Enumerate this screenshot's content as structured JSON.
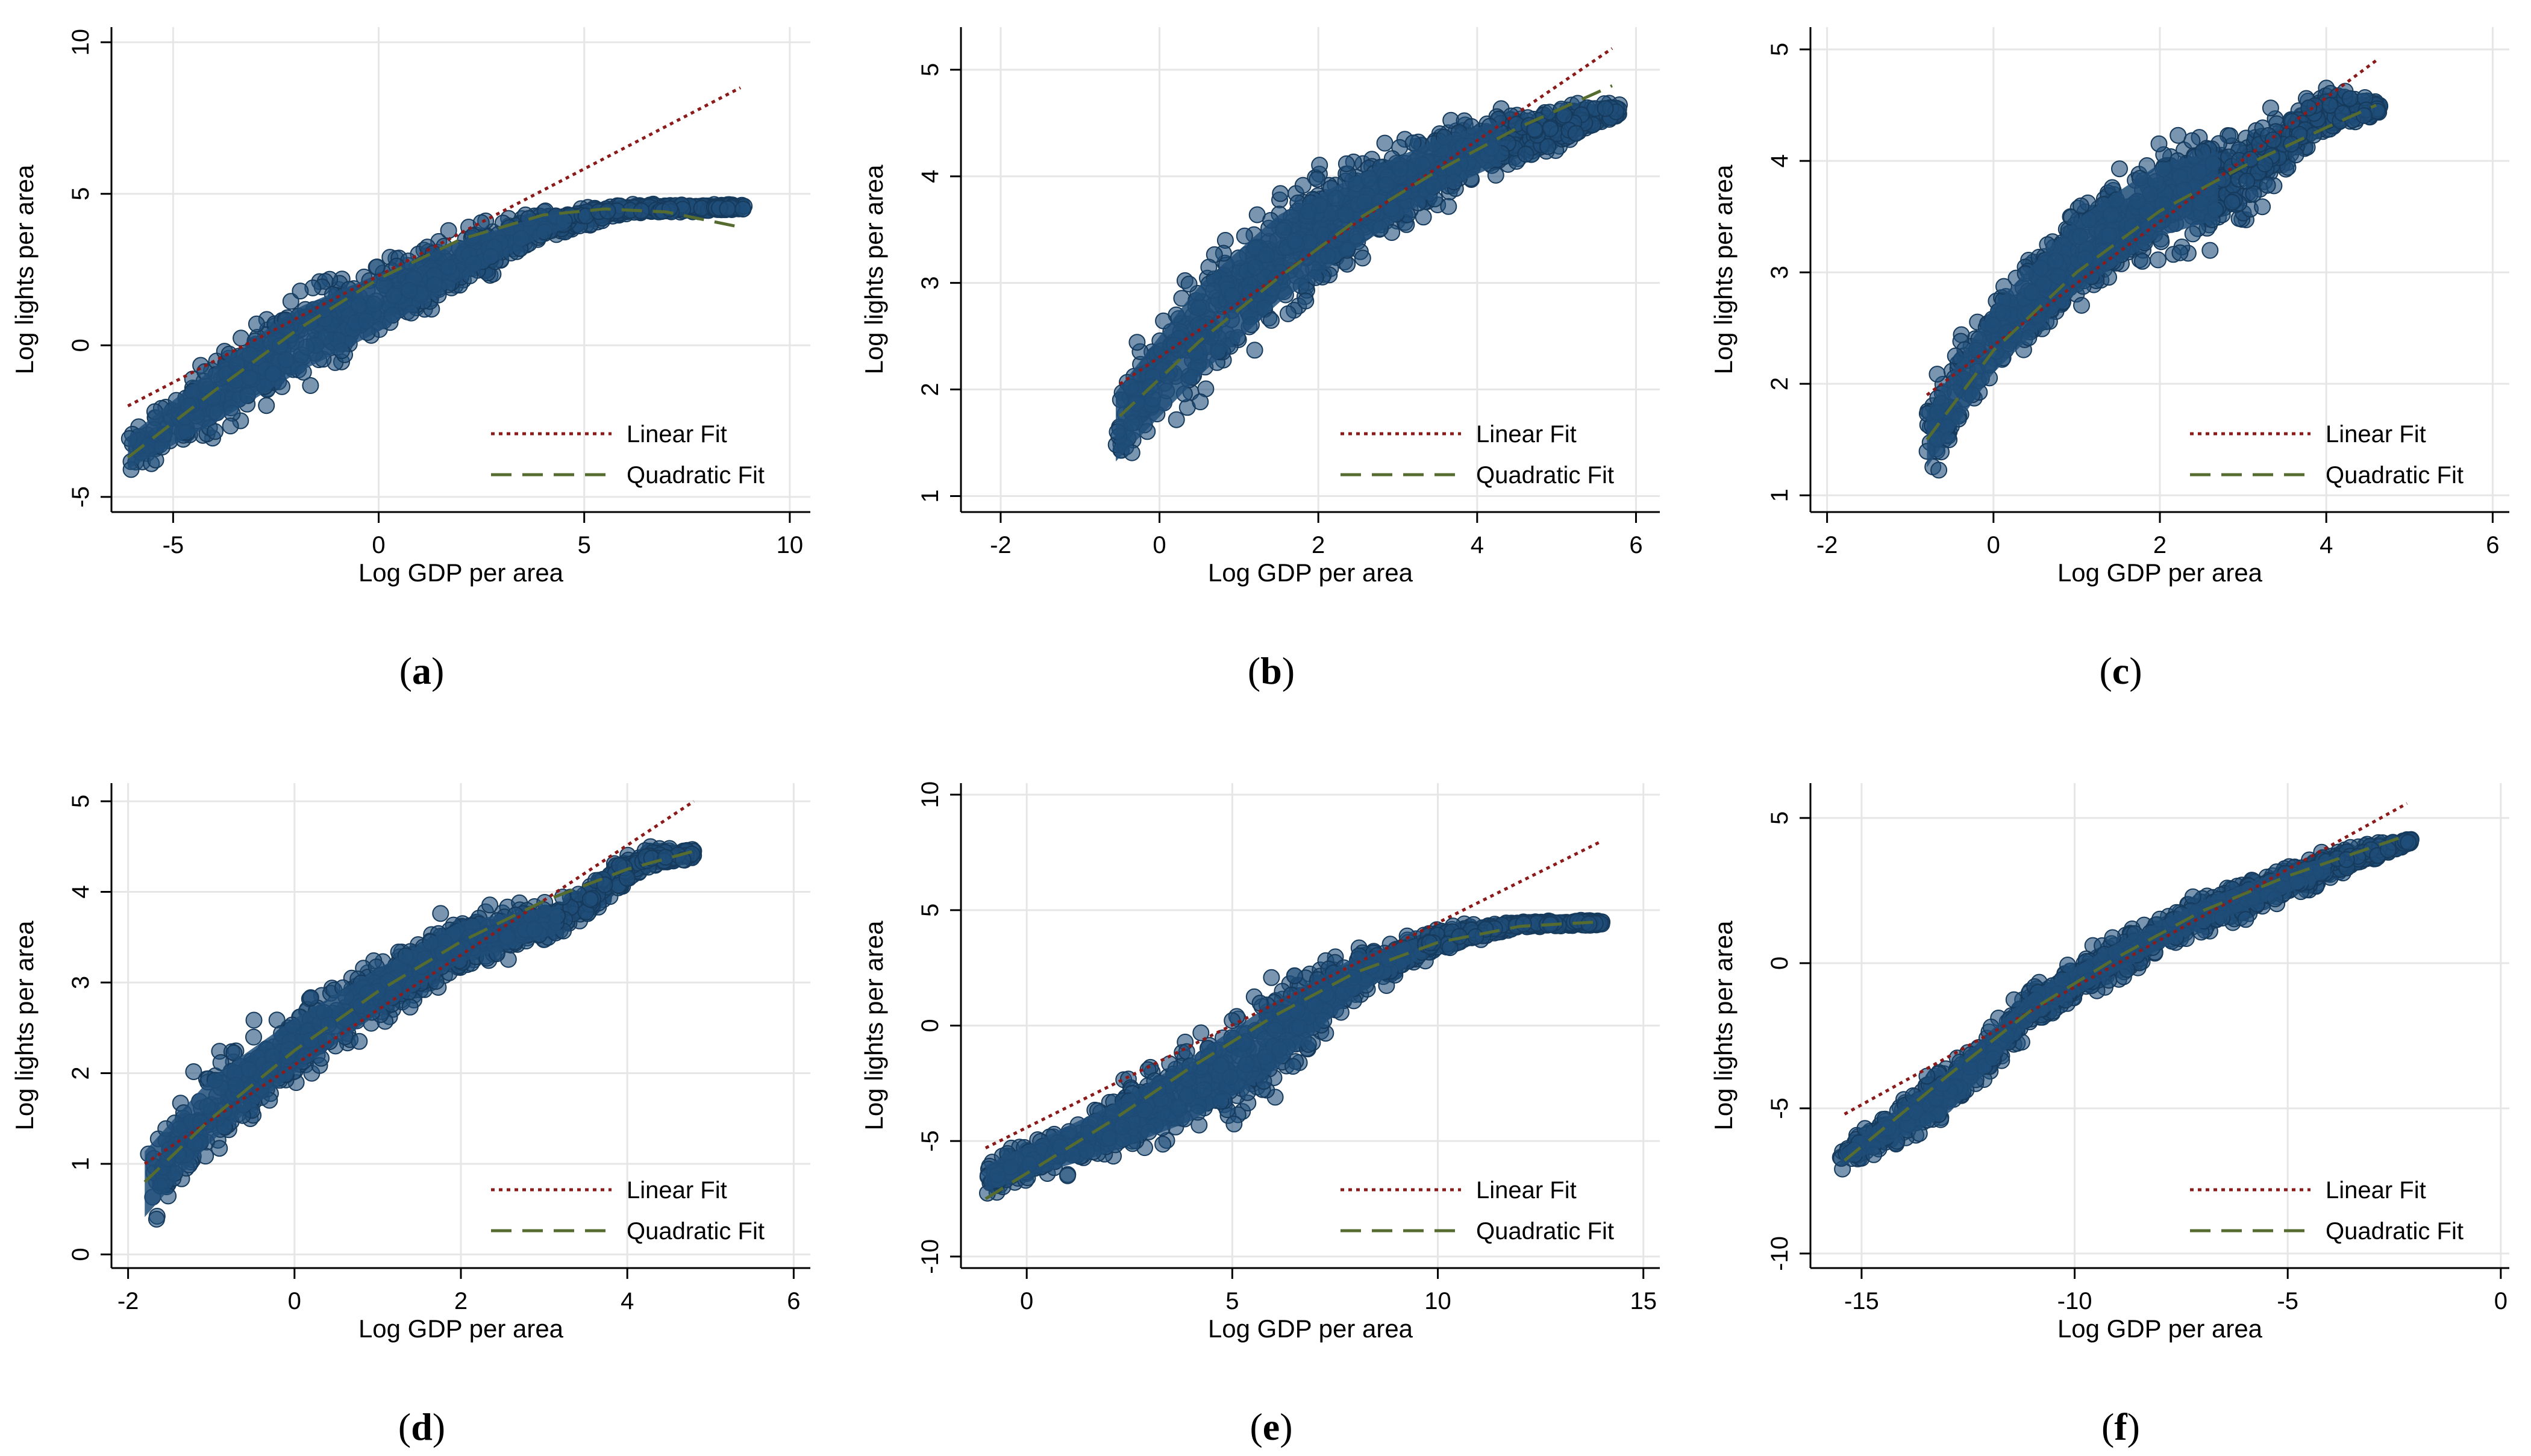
{
  "colors": {
    "scatter": "#1f4e79",
    "scatter_edge": "#163a5c",
    "linear_fit": "#8b1a1a",
    "quadratic_fit": "#556b2f",
    "grid": "#e6e6e6",
    "axis": "#000000"
  },
  "chart_data": [
    {
      "panel": "(a)",
      "panel_label_parts": [
        "(",
        "a",
        ")"
      ],
      "type": "scatter",
      "xlabel": "Log GDP per area",
      "ylabel": "Log lights per area",
      "xlim": [
        -6.5,
        10.5
      ],
      "ylim": [
        -5.5,
        10.5
      ],
      "xticks": [
        -5,
        0,
        5,
        10
      ],
      "yticks": [
        -5,
        0,
        5,
        10
      ],
      "xtick_labels": [
        "-5",
        "0",
        "5",
        "10"
      ],
      "ytick_labels": [
        "-5",
        "0",
        "5",
        "10"
      ],
      "grid": true,
      "legend_position": "bottom-right",
      "legend": [
        "Linear Fit",
        "Quadratic Fit"
      ],
      "scatter_x_range": [
        -6.1,
        8.9
      ],
      "scatter_max_x": 4.6,
      "linear_fit": {
        "x": [
          -6.1,
          8.8
        ],
        "y": [
          -2.0,
          8.5
        ]
      },
      "quadratic_fit": {
        "x": [
          -6.1,
          -4,
          -2,
          0,
          2,
          4,
          5.5,
          7,
          8.8
        ],
        "y": [
          -3.7,
          -1.5,
          0.5,
          2.2,
          3.5,
          4.3,
          4.5,
          4.4,
          3.9
        ]
      },
      "scatter_band": {
        "x": [
          -6.1,
          -4,
          -2,
          0,
          2,
          4,
          6,
          8.8
        ],
        "y_low": [
          -4.6,
          -3.5,
          -2.0,
          -0.5,
          1.5,
          3.3,
          4.3,
          4.4
        ],
        "y_high": [
          -2.5,
          0.2,
          2.3,
          3.3,
          4.1,
          4.6,
          4.7,
          4.7
        ]
      }
    },
    {
      "panel": "(b)",
      "panel_label_parts": [
        "(",
        "b",
        ")"
      ],
      "type": "scatter",
      "xlabel": "Log GDP per area",
      "ylabel": "Log lights per area",
      "xlim": [
        -2.5,
        6.3
      ],
      "ylim": [
        0.85,
        5.4
      ],
      "xticks": [
        -2,
        0,
        2,
        4,
        6
      ],
      "yticks": [
        1,
        2,
        3,
        4,
        5
      ],
      "xtick_labels": [
        "-2",
        "0",
        "2",
        "4",
        "6"
      ],
      "ytick_labels": [
        "1",
        "2",
        "3",
        "4",
        "5"
      ],
      "grid": true,
      "legend_position": "bottom-right",
      "legend": [
        "Linear Fit",
        "Quadratic Fit"
      ],
      "scatter_x_range": [
        -0.55,
        5.8
      ],
      "scatter_max_x": 4.3,
      "linear_fit": {
        "x": [
          -0.5,
          5.7
        ],
        "y": [
          2.05,
          5.2
        ]
      },
      "quadratic_fit": {
        "x": [
          -0.5,
          0.5,
          1.5,
          2.5,
          3.5,
          4.5,
          5.7
        ],
        "y": [
          1.75,
          2.45,
          3.05,
          3.6,
          4.05,
          4.45,
          4.85
        ]
      },
      "scatter_band": {
        "x": [
          -0.55,
          0.5,
          1.5,
          2.5,
          3.5,
          4.5,
          5.8
        ],
        "y_low": [
          1.0,
          1.7,
          2.4,
          3.0,
          3.6,
          4.0,
          4.55
        ],
        "y_high": [
          2.3,
          3.4,
          4.05,
          4.35,
          4.6,
          4.75,
          4.7
        ]
      }
    },
    {
      "panel": "(c)",
      "panel_label_parts": [
        "(",
        "c",
        ")"
      ],
      "type": "scatter",
      "xlabel": "Log GDP per area",
      "ylabel": "Log lights per area",
      "xlim": [
        -2.2,
        6.2
      ],
      "ylim": [
        0.85,
        5.2
      ],
      "xticks": [
        -2,
        0,
        2,
        4,
        6
      ],
      "yticks": [
        1,
        2,
        3,
        4,
        5
      ],
      "xtick_labels": [
        "-2",
        "0",
        "2",
        "4",
        "6"
      ],
      "ytick_labels": [
        "1",
        "2",
        "3",
        "4",
        "5"
      ],
      "grid": true,
      "legend_position": "bottom-right",
      "legend": [
        "Linear Fit",
        "Quadratic Fit"
      ],
      "scatter_x_range": [
        -0.8,
        4.65
      ],
      "scatter_max_x": 2.7,
      "linear_fit": {
        "x": [
          -0.8,
          4.6
        ],
        "y": [
          1.9,
          4.9
        ]
      },
      "quadratic_fit": {
        "x": [
          -0.8,
          0,
          1,
          2,
          3,
          4,
          4.6
        ],
        "y": [
          1.5,
          2.3,
          3.0,
          3.55,
          3.95,
          4.3,
          4.5
        ]
      },
      "scatter_band": {
        "x": [
          -0.8,
          0,
          1,
          2,
          2.8,
          4.0,
          4.65
        ],
        "y_low": [
          1.0,
          1.8,
          2.5,
          3.0,
          3.2,
          4.2,
          4.4
        ],
        "y_high": [
          2.0,
          3.0,
          3.8,
          4.3,
          4.4,
          4.7,
          4.55
        ]
      }
    },
    {
      "panel": "(d)",
      "panel_label_parts": [
        "(",
        "d",
        ")"
      ],
      "type": "scatter",
      "xlabel": "Log GDP per area",
      "ylabel": "Log lights per area",
      "xlim": [
        -2.2,
        6.2
      ],
      "ylim": [
        -0.15,
        5.2
      ],
      "xticks": [
        -2,
        0,
        2,
        4,
        6
      ],
      "yticks": [
        0,
        1,
        2,
        3,
        4,
        5
      ],
      "xtick_labels": [
        "-2",
        "0",
        "2",
        "4",
        "6"
      ],
      "ytick_labels": [
        "0",
        "1",
        "2",
        "3",
        "4",
        "5"
      ],
      "grid": true,
      "legend_position": "bottom-right",
      "legend": [
        "Linear Fit",
        "Quadratic Fit"
      ],
      "scatter_x_range": [
        -1.8,
        4.8
      ],
      "scatter_max_x": 3.2,
      "linear_fit": {
        "x": [
          -1.8,
          4.8
        ],
        "y": [
          1.0,
          5.0
        ]
      },
      "quadratic_fit": {
        "x": [
          -1.8,
          -1,
          0,
          1,
          2,
          3,
          4,
          4.8
        ],
        "y": [
          0.8,
          1.5,
          2.25,
          2.9,
          3.45,
          3.9,
          4.25,
          4.45
        ]
      },
      "scatter_band": {
        "x": [
          -1.8,
          -1,
          0,
          1,
          2,
          3.2,
          4.2,
          4.8
        ],
        "y_low": [
          0.05,
          0.9,
          1.7,
          2.4,
          3.0,
          3.4,
          4.2,
          4.35
        ],
        "y_high": [
          1.5,
          2.3,
          2.9,
          3.4,
          3.9,
          4.0,
          4.55,
          4.5
        ]
      }
    },
    {
      "panel": "(e)",
      "panel_label_parts": [
        "(",
        "e",
        ")"
      ],
      "type": "scatter",
      "xlabel": "Log GDP per area",
      "ylabel": "Log lights per area",
      "xlim": [
        -1.6,
        15.4
      ],
      "ylim": [
        -10.5,
        10.5
      ],
      "xticks": [
        0,
        5,
        10,
        15
      ],
      "yticks": [
        -10,
        -5,
        0,
        5,
        10
      ],
      "xtick_labels": [
        "0",
        "5",
        "10",
        "15"
      ],
      "ytick_labels": [
        "-10",
        "-5",
        "0",
        "5",
        "10"
      ],
      "grid": true,
      "legend_position": "bottom-right",
      "legend": [
        "Linear Fit",
        "Quadratic Fit"
      ],
      "scatter_x_range": [
        -1.0,
        14.0
      ],
      "scatter_max_x": 9.5,
      "linear_fit": {
        "x": [
          -1.0,
          14.0
        ],
        "y": [
          -5.3,
          8.0
        ]
      },
      "quadratic_fit": {
        "x": [
          -1.0,
          2,
          4,
          6,
          8,
          10,
          12,
          14
        ],
        "y": [
          -7.5,
          -4.2,
          -1.8,
          0.4,
          2.3,
          3.6,
          4.3,
          4.5
        ]
      },
      "scatter_band": {
        "x": [
          -1.0,
          2,
          4,
          6,
          8,
          10,
          12,
          14
        ],
        "y_low": [
          -7.7,
          -6.5,
          -5.5,
          -3.5,
          0.5,
          3.0,
          4.2,
          4.3
        ],
        "y_high": [
          -5.5,
          -2.5,
          0.0,
          2.5,
          3.8,
          4.4,
          4.6,
          4.6
        ]
      }
    },
    {
      "panel": "(f)",
      "panel_label_parts": [
        "(",
        "f",
        ")"
      ],
      "type": "scatter",
      "xlabel": "Log GDP per area",
      "ylabel": "Log lights per area",
      "xlim": [
        -16.2,
        0.2
      ],
      "ylim": [
        -10.5,
        6.2
      ],
      "xticks": [
        -15,
        -10,
        -5,
        0
      ],
      "yticks": [
        -10,
        -5,
        0,
        5
      ],
      "xtick_labels": [
        "-15",
        "-10",
        "-5",
        "0"
      ],
      "ytick_labels": [
        "-10",
        "-5",
        "0",
        "5"
      ],
      "grid": true,
      "legend_position": "bottom-right",
      "legend": [
        "Linear Fit",
        "Quadratic Fit"
      ],
      "scatter_x_range": [
        -15.5,
        -2.1
      ],
      "scatter_max_x": -4.0,
      "linear_fit": {
        "x": [
          -15.4,
          -2.2
        ],
        "y": [
          -5.2,
          5.5
        ]
      },
      "quadratic_fit": {
        "x": [
          -15.4,
          -13,
          -11,
          -9,
          -7,
          -5,
          -3,
          -2.2
        ],
        "y": [
          -6.8,
          -3.9,
          -1.6,
          0.2,
          1.8,
          3.0,
          4.0,
          4.4
        ]
      },
      "scatter_band": {
        "x": [
          -15.5,
          -13,
          -11,
          -9,
          -7,
          -5,
          -3,
          -2.1
        ],
        "y_low": [
          -7.3,
          -6.0,
          -2.5,
          -0.8,
          0.8,
          2.0,
          3.4,
          4.1
        ],
        "y_high": [
          -6.2,
          -3.0,
          -0.5,
          1.2,
          2.6,
          3.7,
          4.3,
          4.3
        ]
      }
    }
  ]
}
